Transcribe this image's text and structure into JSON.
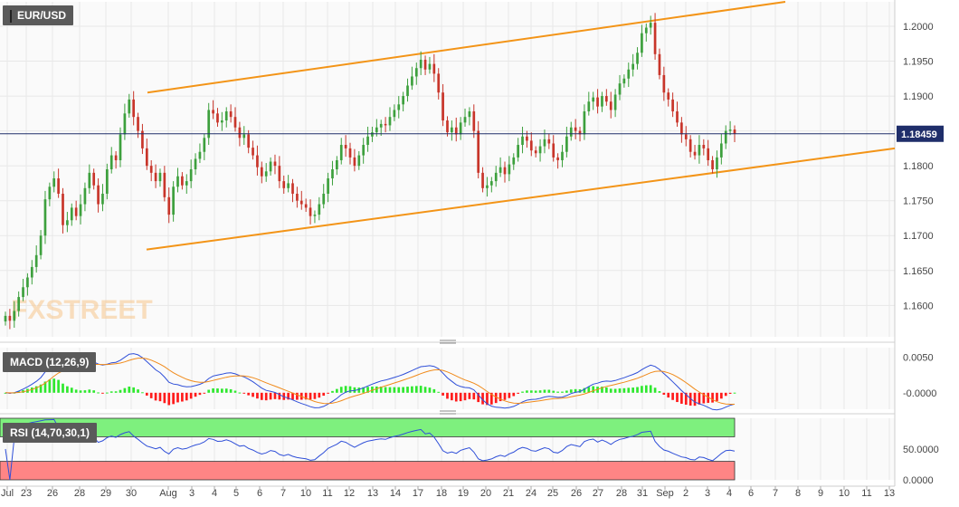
{
  "chart_data": [
    {
      "type": "candlestick",
      "title": "EUR/USD",
      "last_price_label": "1.18459",
      "last_price": 1.18459,
      "price_ticks": [
        "1.2000",
        "1.1950",
        "1.1900",
        "1.1850",
        "1.1800",
        "1.1750",
        "1.1700",
        "1.1650",
        "1.1600"
      ],
      "price_range": [
        1.1555,
        1.2035
      ],
      "x_tick_labels": [
        "Jul",
        "23",
        "26",
        "28",
        "29",
        "30",
        "Aug",
        "3",
        "4",
        "5",
        "6",
        "7",
        "10",
        "11",
        "12",
        "13",
        "14",
        "17",
        "18",
        "19",
        "20",
        "21",
        "24",
        "25",
        "26",
        "27",
        "28",
        "31",
        "Sep",
        "2",
        "3",
        "4",
        "6",
        "7",
        "8",
        "9",
        "10",
        "11",
        "13"
      ],
      "channel_upper_start": 1.1905,
      "channel_upper_end": 1.2035,
      "channel_lower_start": 1.168,
      "channel_lower_end": 1.1825,
      "colors": {
        "up": "#3da03d",
        "down": "#c8352a",
        "channel": "#f39417",
        "price_line": "#1f2e6a",
        "axis_text": "#444444"
      },
      "watermark": "FXSTREET",
      "candles_close": [
        1.1585,
        1.1578,
        1.1592,
        1.1612,
        1.1626,
        1.164,
        1.1655,
        1.1672,
        1.17,
        1.1752,
        1.177,
        1.1782,
        1.176,
        1.1715,
        1.1722,
        1.174,
        1.1728,
        1.1745,
        1.1768,
        1.179,
        1.1772,
        1.1745,
        1.176,
        1.1795,
        1.1815,
        1.1808,
        1.1845,
        1.1875,
        1.1895,
        1.187,
        1.185,
        1.1825,
        1.18,
        1.179,
        1.1778,
        1.179,
        1.1755,
        1.173,
        1.177,
        1.1785,
        1.1772,
        1.1778,
        1.1795,
        1.181,
        1.182,
        1.184,
        1.188,
        1.1875,
        1.1862,
        1.1865,
        1.1878,
        1.187,
        1.1855,
        1.184,
        1.1845,
        1.1826,
        1.1815,
        1.1798,
        1.1785,
        1.1792,
        1.1806,
        1.18,
        1.1778,
        1.1768,
        1.1775,
        1.176,
        1.175,
        1.1745,
        1.174,
        1.1728,
        1.173,
        1.1745,
        1.176,
        1.1782,
        1.1795,
        1.1808,
        1.183,
        1.1825,
        1.1812,
        1.18,
        1.1815,
        1.183,
        1.1842,
        1.1848,
        1.1855,
        1.186,
        1.1858,
        1.187,
        1.188,
        1.1888,
        1.19,
        1.1915,
        1.1928,
        1.194,
        1.1952,
        1.1938,
        1.1946,
        1.1932,
        1.1905,
        1.1865,
        1.1848,
        1.1855,
        1.1845,
        1.1862,
        1.187,
        1.1878,
        1.185,
        1.179,
        1.1768,
        1.1772,
        1.1778,
        1.179,
        1.1798,
        1.1788,
        1.1802,
        1.1812,
        1.183,
        1.1842,
        1.1836,
        1.1822,
        1.1818,
        1.1828,
        1.1838,
        1.1832,
        1.1812,
        1.1808,
        1.182,
        1.1842,
        1.1855,
        1.185,
        1.1845,
        1.1878,
        1.1892,
        1.1898,
        1.1885,
        1.19,
        1.1892,
        1.188,
        1.1902,
        1.1918,
        1.1925,
        1.1938,
        1.1946,
        1.1962,
        1.199,
        1.1998,
        1.2005,
        1.196,
        1.193,
        1.1905,
        1.1895,
        1.1878,
        1.1862,
        1.1845,
        1.1838,
        1.182,
        1.1815,
        1.183,
        1.1825,
        1.1808,
        1.1795,
        1.1812,
        1.1832,
        1.185,
        1.1852,
        1.1846
      ]
    },
    {
      "type": "macd",
      "title": "MACD (12,26,9)",
      "ticks": [
        "0.0050",
        "-0.0000"
      ],
      "range": [
        -0.0023,
        0.0063
      ]
    },
    {
      "type": "rsi",
      "title": "RSI (14,70,30,1)",
      "ticks": [
        "50.0000",
        "0.0000"
      ],
      "range": [
        0,
        100
      ],
      "overbought": 70,
      "oversold": 30
    }
  ]
}
